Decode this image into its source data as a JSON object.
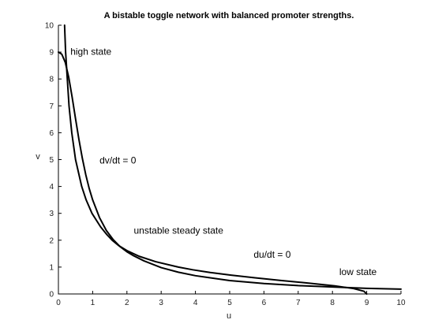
{
  "chart_data": {
    "type": "line",
    "title": "A bistable toggle network with balanced promoter strengths.",
    "xlabel": "u",
    "ylabel": "v",
    "xlim": [
      0,
      10
    ],
    "ylim": [
      0,
      10
    ],
    "xticks": [
      0,
      1,
      2,
      3,
      4,
      5,
      6,
      7,
      8,
      9,
      10
    ],
    "yticks": [
      0,
      1,
      2,
      3,
      4,
      5,
      6,
      7,
      8,
      9,
      10
    ],
    "grid": false,
    "colors": {
      "curves": "#000000",
      "background": "#ffffff"
    },
    "series": [
      {
        "equation": "dv/dt = 0",
        "x": [
          0.0,
          0.1,
          0.2,
          0.3,
          0.4,
          0.5,
          0.6,
          0.7,
          0.8,
          0.9,
          1.0,
          1.2,
          1.4,
          1.6,
          1.8,
          2.0,
          2.2,
          2.5,
          3.0,
          3.5,
          4.0,
          5.0,
          6.0,
          7.0,
          8.0,
          9.0,
          10.0
        ],
        "y": [
          9.0,
          8.92,
          8.62,
          8.07,
          7.33,
          6.52,
          5.74,
          5.04,
          4.43,
          3.92,
          3.5,
          2.84,
          2.36,
          2.02,
          1.76,
          1.57,
          1.42,
          1.23,
          0.98,
          0.81,
          0.68,
          0.5,
          0.39,
          0.31,
          0.26,
          0.21,
          0.18
        ]
      },
      {
        "equation": "du/dt = 0",
        "x": [
          9.0,
          8.92,
          8.62,
          8.07,
          7.33,
          6.52,
          5.74,
          5.04,
          4.43,
          3.92,
          3.5,
          2.84,
          2.36,
          2.02,
          1.76,
          1.57,
          1.42,
          1.23,
          0.98,
          0.81,
          0.68,
          0.5,
          0.39,
          0.31,
          0.26,
          0.21,
          0.18
        ],
        "y": [
          0.0,
          0.1,
          0.2,
          0.3,
          0.4,
          0.5,
          0.6,
          0.7,
          0.8,
          0.9,
          1.0,
          1.2,
          1.4,
          1.6,
          1.8,
          2.0,
          2.2,
          2.5,
          3.0,
          3.5,
          4.0,
          5.0,
          6.0,
          7.0,
          8.0,
          9.0,
          10.0
        ]
      }
    ],
    "annotations": [
      {
        "text": "high state",
        "x": 0.35,
        "y": 8.9
      },
      {
        "text": "dv/dt = 0",
        "x": 1.2,
        "y": 4.85
      },
      {
        "text": "unstable steady state",
        "x": 2.2,
        "y": 2.25
      },
      {
        "text": "du/dt = 0",
        "x": 5.7,
        "y": 1.35
      },
      {
        "text": "low state",
        "x": 8.2,
        "y": 0.7
      }
    ]
  }
}
